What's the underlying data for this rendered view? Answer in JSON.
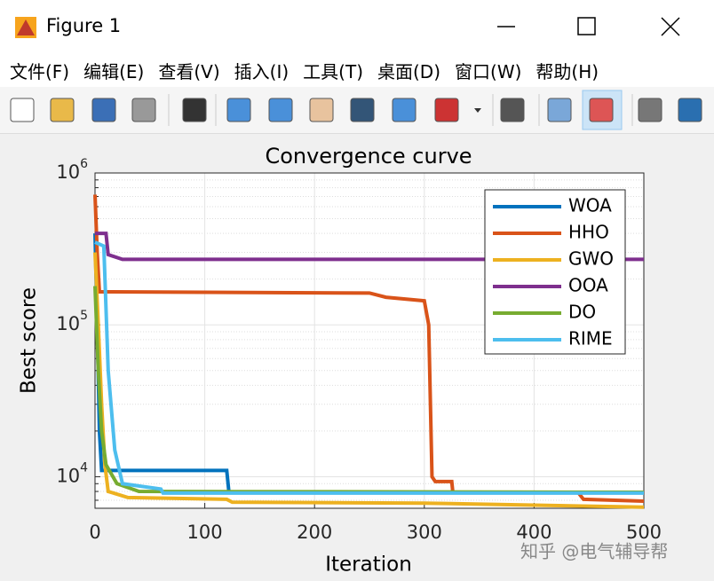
{
  "window": {
    "title": "Figure 1",
    "menu": [
      "文件(F)",
      "编辑(E)",
      "查看(V)",
      "插入(I)",
      "工具(T)",
      "桌面(D)",
      "窗口(W)",
      "帮助(H)"
    ]
  },
  "watermark": "知乎 @电气辅导帮",
  "chart_data": {
    "type": "line",
    "title": "Convergence curve",
    "x_label": "Iteration",
    "y_label": "Best score",
    "log_y": true,
    "grid": true,
    "legend": "northeast",
    "xlim": [
      0,
      500
    ],
    "xticks": [
      0,
      100,
      200,
      300,
      400,
      500
    ],
    "ylim": [
      6200,
      1000000
    ],
    "yticks": [
      {
        "value": 10000,
        "label": "10^4"
      },
      {
        "value": 100000,
        "label": "10^5"
      },
      {
        "value": 1000000,
        "label": "10^6"
      }
    ],
    "series": [
      {
        "name": "WOA",
        "color": "#0072bd",
        "x": [
          0,
          2,
          4,
          6,
          120,
          122,
          500
        ],
        "values": [
          400000,
          100000,
          20000,
          11000,
          11000,
          7900,
          7900
        ]
      },
      {
        "name": "HHO",
        "color": "#d95319",
        "x": [
          0,
          2,
          4,
          250,
          265,
          300,
          304,
          307,
          310,
          325,
          326,
          440,
          445,
          500
        ],
        "values": [
          720000,
          300000,
          165000,
          162000,
          152000,
          144000,
          100000,
          10000,
          9300,
          9300,
          7900,
          7900,
          7100,
          6900
        ]
      },
      {
        "name": "GWO",
        "color": "#edb120",
        "x": [
          0,
          3,
          6,
          9,
          12,
          30,
          120,
          125,
          300,
          500
        ],
        "values": [
          300000,
          100000,
          30000,
          12000,
          8000,
          7300,
          7100,
          6800,
          6700,
          6300
        ]
      },
      {
        "name": "OOA",
        "color": "#7e2f8e",
        "x": [
          0,
          10,
          12,
          25,
          500
        ],
        "values": [
          400000,
          400000,
          290000,
          270000,
          270000
        ]
      },
      {
        "name": "DO",
        "color": "#77ac30",
        "x": [
          0,
          3,
          6,
          10,
          20,
          40,
          500
        ],
        "values": [
          180000,
          50000,
          20000,
          12000,
          9000,
          8000,
          7900
        ]
      },
      {
        "name": "RIME",
        "color": "#4dbeee",
        "x": [
          0,
          8,
          12,
          18,
          25,
          60,
          62,
          500
        ],
        "values": [
          350000,
          330000,
          50000,
          15000,
          9000,
          8300,
          7800,
          7800
        ]
      }
    ]
  }
}
